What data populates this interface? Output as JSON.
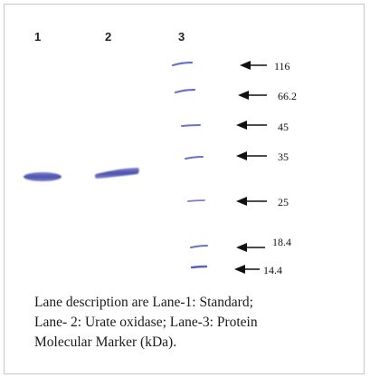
{
  "lanes": [
    "1",
    "2",
    "3"
  ],
  "marker": {
    "unit": "kDa",
    "labels": [
      "116",
      "66.2",
      "45",
      "35",
      "25",
      "18.4",
      "14.4"
    ]
  },
  "colors": {
    "band": "#5a5fb8",
    "band_dark": "#3e43a0",
    "marker_band": "#6a72c6",
    "arrow": "#111111"
  },
  "caption": {
    "line1": "Lane description are Lane-1: Standard;",
    "line2": "Lane- 2: Urate oxidase; Lane-3: Protein",
    "line3": "Molecular Marker (kDa)."
  }
}
